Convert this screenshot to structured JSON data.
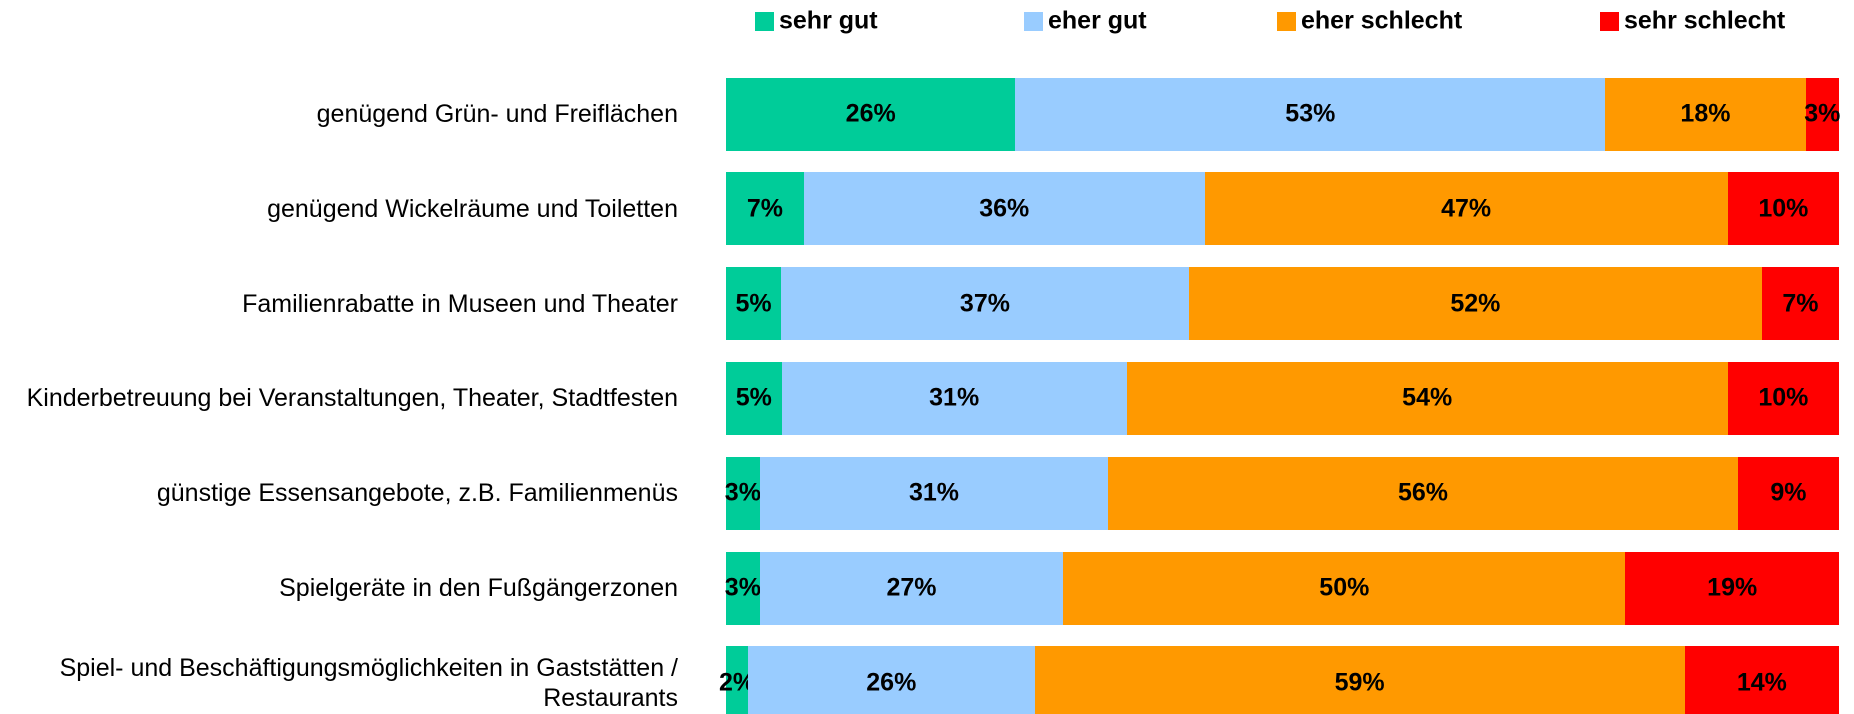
{
  "chart_data": {
    "type": "bar",
    "stacking": "percent",
    "orientation": "horizontal",
    "legend": "top",
    "categories": [
      "genügend Grün- und Freiflächen",
      "genügend Wickelräume und Toiletten",
      "Familienrabatte in Museen und Theater",
      "Kinderbetreuung bei Veranstaltungen, Theater, Stadtfesten",
      "günstige Essensangebote, z.B. Familienmenüs",
      "Spielgeräte in den Fußgängerzonen",
      "Spiel- und Beschäftigungsmöglichkeiten in Gaststätten / Restaurants"
    ],
    "series": [
      {
        "name": "sehr gut",
        "color": "#00cc99",
        "values": [
          26,
          7,
          5,
          5,
          3,
          3,
          2
        ],
        "value_labels": [
          "26%",
          "7%",
          "5%",
          "5%",
          "3%",
          "3%",
          "2%"
        ]
      },
      {
        "name": "eher gut",
        "color": "#99ccff",
        "values": [
          53,
          36,
          37,
          31,
          31,
          27,
          26
        ],
        "value_labels": [
          "53%",
          "36%",
          "37%",
          "31%",
          "31%",
          "27%",
          "26%"
        ]
      },
      {
        "name": "eher schlecht",
        "color": "#ff9900",
        "values": [
          18,
          47,
          52,
          54,
          56,
          50,
          59
        ],
        "value_labels": [
          "18%",
          "47%",
          "52%",
          "54%",
          "56%",
          "50%",
          "59%"
        ]
      },
      {
        "name": "sehr schlecht",
        "color": "#ff0000",
        "values": [
          3,
          10,
          7,
          10,
          9,
          19,
          14
        ],
        "value_labels": [
          "3%",
          "10%",
          "7%",
          "10%",
          "9%",
          "19%",
          "14%"
        ]
      }
    ]
  }
}
